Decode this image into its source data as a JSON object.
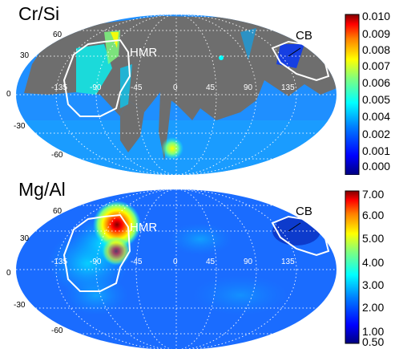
{
  "panels": [
    {
      "title": "Cr/Si",
      "colorbar_ticks": [
        "0.010",
        "0.009",
        "0.008",
        "0.007",
        "0.006",
        "0.005",
        "0.004",
        "0.002",
        "0.001",
        "0.000"
      ],
      "lat_labels": [
        "60",
        "30",
        "0",
        "-30",
        "-60"
      ],
      "lon_labels": [
        "-135",
        "-90",
        "-45",
        "0",
        "45",
        "90",
        "135"
      ],
      "regions": [
        "HMR",
        "CB"
      ]
    },
    {
      "title": "Mg/Al",
      "colorbar_ticks": [
        "7.00",
        "6.00",
        "5.00",
        "4.00",
        "3.00",
        "2.00",
        "1.00",
        "0.50"
      ],
      "lat_labels": [
        "60",
        "30",
        "0",
        "-30",
        "-60"
      ],
      "lon_labels": [
        "-135",
        "-90",
        "-45",
        "0",
        "45",
        "90",
        "135"
      ],
      "regions": [
        "HMR",
        "CB"
      ]
    }
  ],
  "colors": {
    "colormap": [
      "#00007f",
      "#0000ff",
      "#007fff",
      "#00ffff",
      "#7fff7f",
      "#ffff00",
      "#ff7f00",
      "#ff0000",
      "#7f0000"
    ],
    "masked": "#6e6e6e",
    "outline": "#ffffff",
    "grid": "#ffffff"
  }
}
